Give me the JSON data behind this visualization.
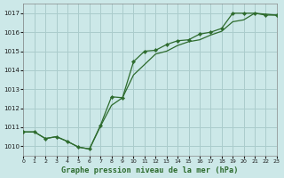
{
  "title": "Graphe pression niveau de la mer (hPa)",
  "bg_color": "#cce8e8",
  "grid_color": "#aacccc",
  "line_color": "#2d6b2d",
  "xlim": [
    0,
    23
  ],
  "ylim": [
    1009.5,
    1017.5
  ],
  "xticks": [
    0,
    1,
    2,
    3,
    4,
    5,
    6,
    7,
    8,
    9,
    10,
    11,
    12,
    13,
    14,
    15,
    16,
    17,
    18,
    19,
    20,
    21,
    22,
    23
  ],
  "yticks": [
    1010,
    1011,
    1012,
    1013,
    1014,
    1015,
    1016,
    1017
  ],
  "line1_x": [
    0,
    1,
    2,
    3,
    4,
    5,
    6,
    7,
    8,
    9,
    10,
    11,
    12,
    13,
    14,
    15,
    16,
    17,
    18,
    19,
    20,
    21,
    22,
    23
  ],
  "line1_y": [
    1010.75,
    1010.75,
    1010.4,
    1010.5,
    1010.25,
    1009.95,
    1009.85,
    1011.05,
    1012.15,
    1012.55,
    1013.75,
    1014.3,
    1014.85,
    1015.0,
    1015.3,
    1015.5,
    1015.6,
    1015.85,
    1016.05,
    1016.55,
    1016.65,
    1017.0,
    1016.95,
    1016.9
  ],
  "line2_x": [
    0,
    1,
    2,
    3,
    4,
    5,
    6,
    7,
    8,
    9,
    10,
    11,
    12,
    13,
    14,
    15,
    16,
    17,
    18,
    19,
    20,
    21,
    22,
    23
  ],
  "line2_y": [
    1010.75,
    1010.75,
    1010.4,
    1010.5,
    1010.25,
    1009.95,
    1009.85,
    1011.1,
    1012.6,
    1012.55,
    1014.45,
    1015.0,
    1015.05,
    1015.35,
    1015.55,
    1015.6,
    1015.9,
    1016.0,
    1016.2,
    1017.0,
    1017.0,
    1017.0,
    1016.9,
    1016.9
  ]
}
